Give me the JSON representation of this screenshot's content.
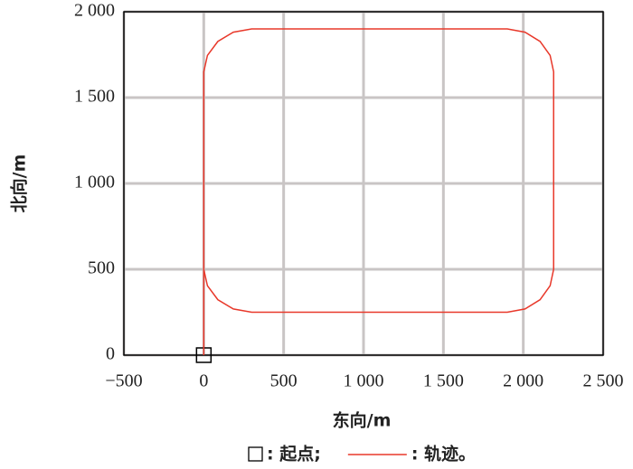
{
  "chart_data": {
    "type": "line",
    "xlabel": "东向/m",
    "ylabel": "北向/m",
    "xlim": [
      -500,
      2500
    ],
    "xticks": [
      {
        "value": -500,
        "label": "−500"
      },
      0,
      500,
      {
        "value": 1000,
        "label": "1 000"
      },
      {
        "value": 1500,
        "label": "1 500"
      },
      {
        "value": 2000,
        "label": "2 000"
      },
      {
        "value": 2500,
        "label": "2 500"
      }
    ],
    "ylim": [
      0,
      2000
    ],
    "yticks": [
      0,
      500,
      {
        "value": 1000,
        "label": "1 000"
      },
      {
        "value": 1500,
        "label": "1 500"
      },
      {
        "value": 2000,
        "label": "2 000"
      }
    ],
    "grid": true,
    "legend": "bottom",
    "series": [
      {
        "name": ": 起点;",
        "color": "#000000",
        "marker": "square",
        "x": [
          0
        ],
        "y": [
          0
        ]
      },
      {
        "name": ": 轨迹。",
        "color": "#e8382a",
        "x": [
          0,
          0,
          23,
          88,
          185,
          300,
          1900,
          2011,
          2105,
          2168,
          2190,
          2190,
          2168,
          2105,
          2011,
          1900,
          300,
          185,
          88,
          23,
          0
        ],
        "y": [
          0,
          1650,
          1746,
          1827,
          1881,
          1900,
          1900,
          1881,
          1827,
          1746,
          1650,
          500,
          404,
          323,
          269,
          250,
          250,
          269,
          323,
          404,
          500
        ]
      }
    ]
  }
}
